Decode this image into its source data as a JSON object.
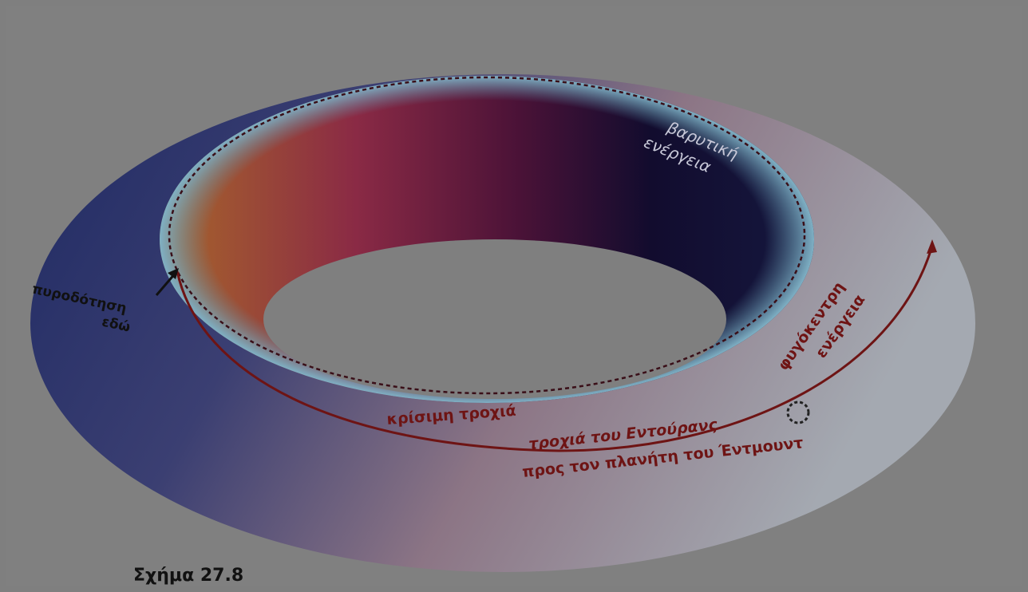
{
  "labels": {
    "gravitational": [
      "βαρυτική",
      "ενέργεια"
    ],
    "centrifugal": [
      "φυγόκεντρη",
      "ενέργεια"
    ],
    "ignition": [
      "πυροδότηση",
      "εδώ"
    ],
    "critical_orbit": "κρίσιμη τροχιά",
    "endurance_orbit": "τροχιά του Εντούρανς",
    "to_planet": "προς τον πλανήτη του Έντμουντ"
  },
  "caption": "Σχήμα 27.8"
}
